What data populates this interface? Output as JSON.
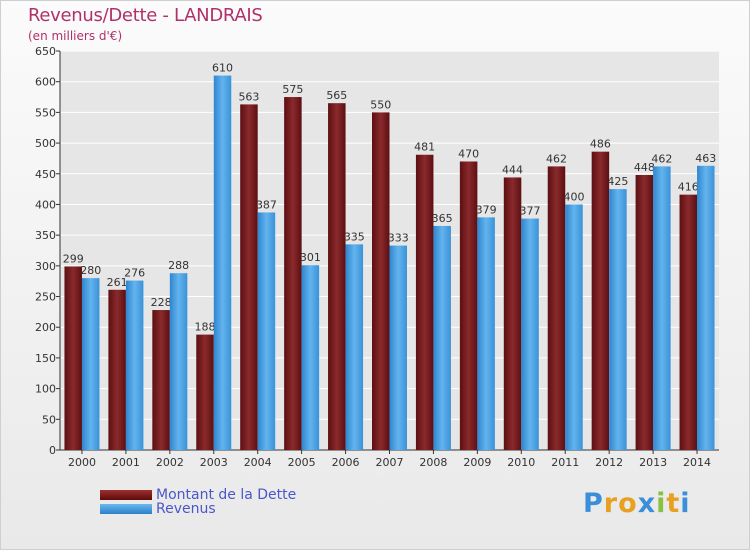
{
  "chart_data": {
    "type": "bar",
    "title": "Revenus/Dette - LANDRAIS",
    "subtitle": "(en milliers d'€)",
    "categories": [
      "2000",
      "2001",
      "2002",
      "2003",
      "2004",
      "2005",
      "2006",
      "2007",
      "2008",
      "2009",
      "2010",
      "2011",
      "2012",
      "2013",
      "2014"
    ],
    "series": [
      {
        "name": "Montant de la Dette",
        "color": "#7a1a1a",
        "values": [
          299,
          261,
          228,
          188,
          563,
          575,
          565,
          550,
          481,
          470,
          444,
          462,
          486,
          448,
          416
        ]
      },
      {
        "name": "Revenus",
        "color": "#4ea6e6",
        "values": [
          280,
          276,
          288,
          610,
          387,
          301,
          335,
          333,
          365,
          379,
          377,
          400,
          425,
          462,
          463
        ]
      }
    ],
    "ylim": [
      0,
      650
    ],
    "yticks": [
      0,
      50,
      100,
      150,
      200,
      250,
      300,
      350,
      400,
      450,
      500,
      550,
      600,
      650
    ],
    "grid": true,
    "legend_position": "bottom-left"
  },
  "logo": {
    "letters": [
      "P",
      "r",
      "o",
      "x",
      "i",
      "t",
      "i"
    ],
    "colors": [
      "#3a8fd8",
      "#e8a020",
      "#e8a020",
      "#3a8fd8",
      "#88c040",
      "#e8a020",
      "#3a8fd8"
    ]
  }
}
